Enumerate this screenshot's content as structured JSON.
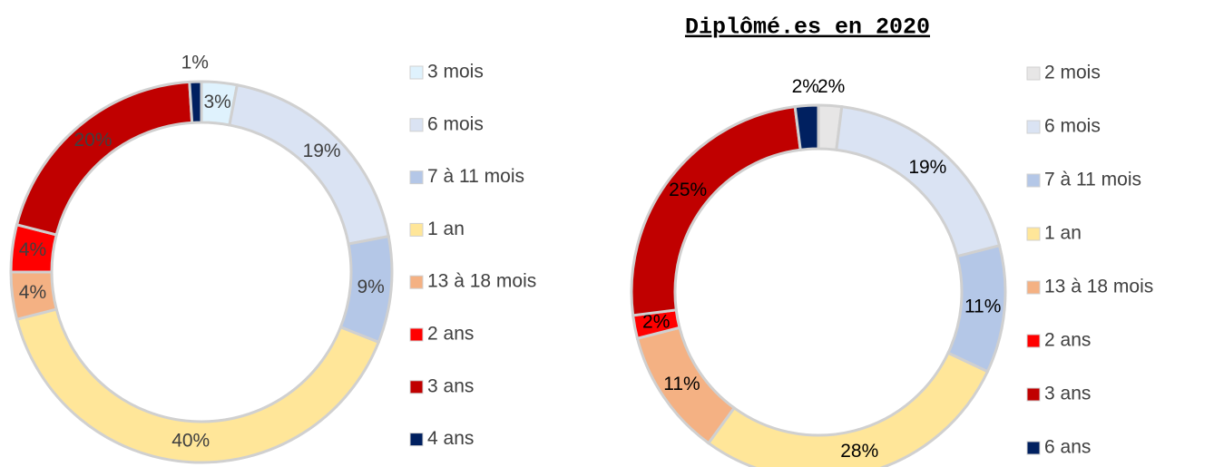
{
  "chart_data": [
    {
      "type": "pie",
      "categories": [
        "3 mois",
        "6 mois",
        "7 à 11 mois",
        "1 an",
        "13 à 18 mois",
        "2 ans",
        "3 ans",
        "4 ans"
      ],
      "values": [
        3,
        19,
        9,
        40,
        4,
        4,
        20,
        1
      ],
      "value_labels": [
        "3%",
        "19%",
        "9%",
        "40%",
        "4%",
        "4%",
        "20%",
        "1%"
      ],
      "colors": [
        "#dff2fd",
        "#dae3f3",
        "#b4c7e7",
        "#ffe699",
        "#f4b183",
        "#ff0000",
        "#c00000",
        "#002060"
      ],
      "legend": "right"
    },
    {
      "type": "pie",
      "title": "Diplômé.es en 2020",
      "categories": [
        "2 mois",
        "6 mois",
        "7 à 11 mois",
        "1 an",
        "13 à 18 mois",
        "2 ans",
        "3 ans",
        "6 ans"
      ],
      "values": [
        2,
        19,
        11,
        28,
        11,
        2,
        25,
        2
      ],
      "value_labels": [
        "2%",
        "19%",
        "11%",
        "28%",
        "11%",
        "2%",
        "25%",
        "2%"
      ],
      "colors": [
        "#e7e6e6",
        "#dae3f3",
        "#b4c7e7",
        "#ffe699",
        "#f4b183",
        "#ff0000",
        "#c00000",
        "#002060"
      ],
      "legend": "right"
    }
  ]
}
